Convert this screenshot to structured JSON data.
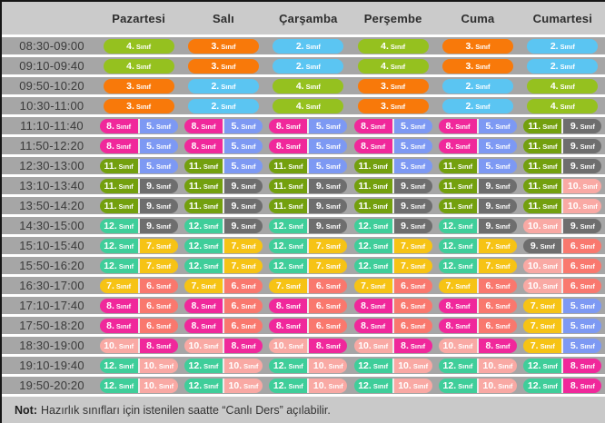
{
  "header": {
    "days": [
      "Pazartesi",
      "Salı",
      "Çarşamba",
      "Perşembe",
      "Cuma",
      "Cumartesi"
    ]
  },
  "pill_suffix": "Sınıf",
  "grade_colors": {
    "2": "#5bc5f2",
    "3": "#f8790a",
    "4": "#95c11f",
    "5": "#7d99f3",
    "6": "#f9786e",
    "7": "#f6c315",
    "8": "#f0289b",
    "9": "#6e6e6e",
    "10": "#f9a9a4",
    "11": "#73a00e",
    "12": "#3fce9a"
  },
  "rows": [
    {
      "time": "08:30-09:00",
      "cells": [
        [
          "4"
        ],
        [
          "3"
        ],
        [
          "2"
        ],
        [
          "4"
        ],
        [
          "3"
        ],
        [
          "2"
        ]
      ]
    },
    {
      "time": "09:10-09:40",
      "cells": [
        [
          "4"
        ],
        [
          "3"
        ],
        [
          "2"
        ],
        [
          "4"
        ],
        [
          "3"
        ],
        [
          "2"
        ]
      ]
    },
    {
      "time": "09:50-10:20",
      "cells": [
        [
          "3"
        ],
        [
          "2"
        ],
        [
          "4"
        ],
        [
          "3"
        ],
        [
          "2"
        ],
        [
          "4"
        ]
      ]
    },
    {
      "time": "10:30-11:00",
      "cells": [
        [
          "3"
        ],
        [
          "2"
        ],
        [
          "4"
        ],
        [
          "3"
        ],
        [
          "2"
        ],
        [
          "4"
        ]
      ]
    },
    {
      "time": "11:10-11:40",
      "cells": [
        [
          "8",
          "5"
        ],
        [
          "8",
          "5"
        ],
        [
          "8",
          "5"
        ],
        [
          "8",
          "5"
        ],
        [
          "8",
          "5"
        ],
        [
          "11",
          "9"
        ]
      ]
    },
    {
      "time": "11:50-12:20",
      "cells": [
        [
          "8",
          "5"
        ],
        [
          "8",
          "5"
        ],
        [
          "8",
          "5"
        ],
        [
          "8",
          "5"
        ],
        [
          "8",
          "5"
        ],
        [
          "11",
          "9"
        ]
      ]
    },
    {
      "time": "12:30-13:00",
      "cells": [
        [
          "11",
          "5"
        ],
        [
          "11",
          "5"
        ],
        [
          "11",
          "5"
        ],
        [
          "11",
          "5"
        ],
        [
          "11",
          "5"
        ],
        [
          "11",
          "9"
        ]
      ]
    },
    {
      "time": "13:10-13:40",
      "cells": [
        [
          "11",
          "9"
        ],
        [
          "11",
          "9"
        ],
        [
          "11",
          "9"
        ],
        [
          "11",
          "9"
        ],
        [
          "11",
          "9"
        ],
        [
          "11",
          "10"
        ]
      ]
    },
    {
      "time": "13:50-14:20",
      "cells": [
        [
          "11",
          "9"
        ],
        [
          "11",
          "9"
        ],
        [
          "11",
          "9"
        ],
        [
          "11",
          "9"
        ],
        [
          "11",
          "9"
        ],
        [
          "11",
          "10"
        ]
      ]
    },
    {
      "time": "14:30-15:00",
      "cells": [
        [
          "12",
          "9"
        ],
        [
          "12",
          "9"
        ],
        [
          "12",
          "9"
        ],
        [
          "12",
          "9"
        ],
        [
          "12",
          "9"
        ],
        [
          "10",
          "9"
        ]
      ]
    },
    {
      "time": "15:10-15:40",
      "cells": [
        [
          "12",
          "7"
        ],
        [
          "12",
          "7"
        ],
        [
          "12",
          "7"
        ],
        [
          "12",
          "7"
        ],
        [
          "12",
          "7"
        ],
        [
          "9",
          "6"
        ]
      ]
    },
    {
      "time": "15:50-16:20",
      "cells": [
        [
          "12",
          "7"
        ],
        [
          "12",
          "7"
        ],
        [
          "12",
          "7"
        ],
        [
          "12",
          "7"
        ],
        [
          "12",
          "7"
        ],
        [
          "10",
          "6"
        ]
      ]
    },
    {
      "time": "16:30-17:00",
      "cells": [
        [
          "7",
          "6"
        ],
        [
          "7",
          "6"
        ],
        [
          "7",
          "6"
        ],
        [
          "7",
          "6"
        ],
        [
          "7",
          "6"
        ],
        [
          "10",
          "6"
        ]
      ]
    },
    {
      "time": "17:10-17:40",
      "cells": [
        [
          "8",
          "6"
        ],
        [
          "8",
          "6"
        ],
        [
          "8",
          "6"
        ],
        [
          "8",
          "6"
        ],
        [
          "8",
          "6"
        ],
        [
          "7",
          "5"
        ]
      ]
    },
    {
      "time": "17:50-18:20",
      "cells": [
        [
          "8",
          "6"
        ],
        [
          "8",
          "6"
        ],
        [
          "8",
          "6"
        ],
        [
          "8",
          "6"
        ],
        [
          "8",
          "6"
        ],
        [
          "7",
          "5"
        ]
      ]
    },
    {
      "time": "18:30-19:00",
      "cells": [
        [
          "10",
          "8"
        ],
        [
          "10",
          "8"
        ],
        [
          "10",
          "8"
        ],
        [
          "10",
          "8"
        ],
        [
          "10",
          "8"
        ],
        [
          "7",
          "5"
        ]
      ]
    },
    {
      "time": "19:10-19:40",
      "cells": [
        [
          "12",
          "10"
        ],
        [
          "12",
          "10"
        ],
        [
          "12",
          "10"
        ],
        [
          "12",
          "10"
        ],
        [
          "12",
          "10"
        ],
        [
          "12",
          "8"
        ]
      ]
    },
    {
      "time": "19:50-20:20",
      "cells": [
        [
          "12",
          "10"
        ],
        [
          "12",
          "10"
        ],
        [
          "12",
          "10"
        ],
        [
          "12",
          "10"
        ],
        [
          "12",
          "10"
        ],
        [
          "12",
          "8"
        ]
      ]
    }
  ],
  "footer": {
    "prefix": "Not:",
    "text": "Hazırlık sınıfları için istenilen saatte “Canlı Ders” açılabilir."
  },
  "colors": {
    "row_bg": "#a6a6a6",
    "header_bg": "#cbcbcb",
    "footer_bg": "#c9c9c9",
    "separator": "#ffffff",
    "border": "#161616",
    "pill_text": "#ffffff"
  }
}
